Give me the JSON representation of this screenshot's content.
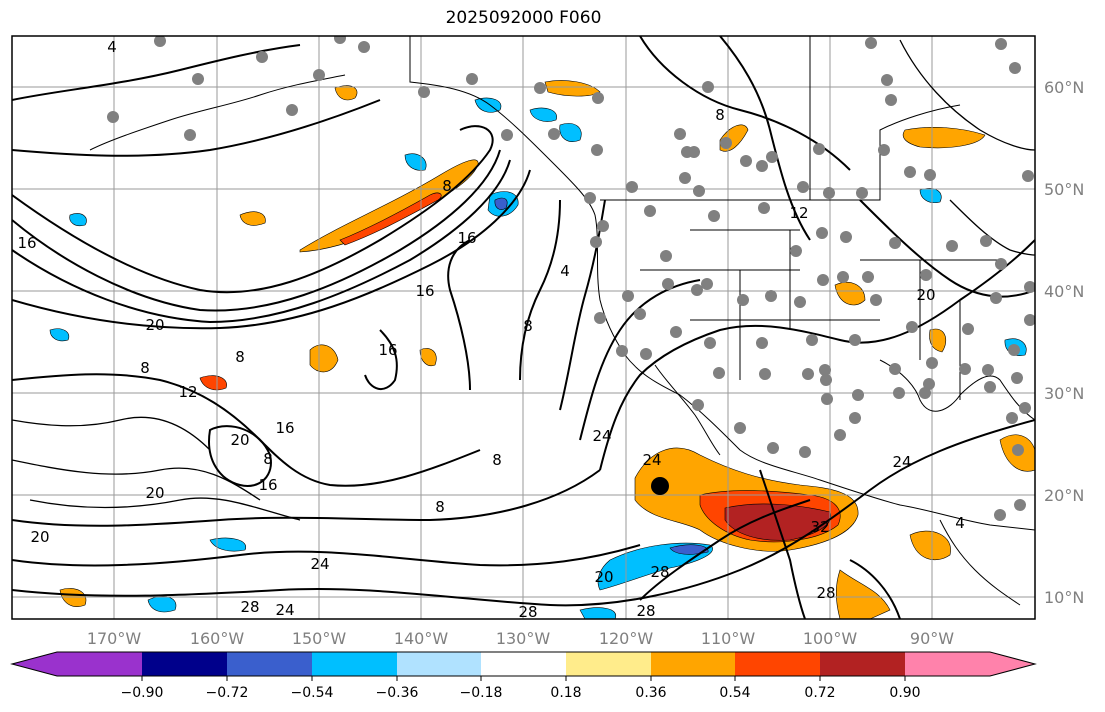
{
  "title": "2025092000 F060",
  "lat_labels": [
    "60°N",
    "50°N",
    "40°N",
    "30°N",
    "20°N",
    "10°N"
  ],
  "lon_labels": [
    "170°W",
    "160°W",
    "150°W",
    "140°W",
    "130°W",
    "120°W",
    "110°W",
    "100°W",
    "90°W"
  ],
  "colorbar": {
    "colors": [
      "#9a32cd",
      "#00008b",
      "#3a5fcd",
      "#00bfff",
      "#b0e2ff",
      "#ffffff",
      "#ffec8b",
      "#ffa500",
      "#ff4500",
      "#b22222",
      "#ff82ab"
    ],
    "tick_labels": [
      "−0.90",
      "−0.72",
      "−0.54",
      "−0.36",
      "−0.18",
      "0.18",
      "0.36",
      "0.54",
      "0.72",
      "0.90"
    ]
  },
  "contour_labels": [
    "4",
    "8",
    "16",
    "20",
    "8",
    "16",
    "16",
    "8",
    "8",
    "12",
    "16",
    "20",
    "16",
    "20",
    "8",
    "20",
    "24",
    "28",
    "24",
    "16",
    "24",
    "8",
    "8",
    "12",
    "4",
    "20",
    "24",
    "32",
    "28",
    "28",
    "20",
    "28",
    "28",
    "24",
    "8",
    "4"
  ]
}
